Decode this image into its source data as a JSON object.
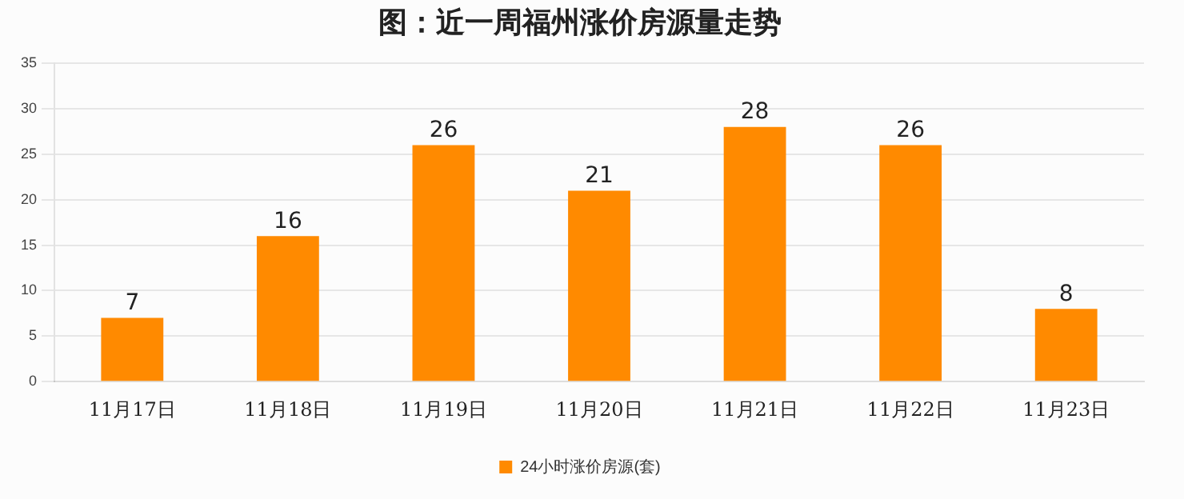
{
  "chart_data": {
    "type": "bar",
    "title": "图：近一周福州涨价房源量走势",
    "categories": [
      "11月17日",
      "11月18日",
      "11月19日",
      "11月20日",
      "11月21日",
      "11月22日",
      "11月23日"
    ],
    "series": [
      {
        "name": "24小时涨价房源(套)",
        "color": "#ff8a00",
        "values": [
          7,
          16,
          26,
          21,
          28,
          26,
          8
        ]
      }
    ],
    "ylim": [
      0,
      35
    ],
    "yticks": [
      0,
      5,
      10,
      15,
      20,
      25,
      30,
      35
    ],
    "grid": "y",
    "legend": "bottom",
    "data_labels": true
  }
}
